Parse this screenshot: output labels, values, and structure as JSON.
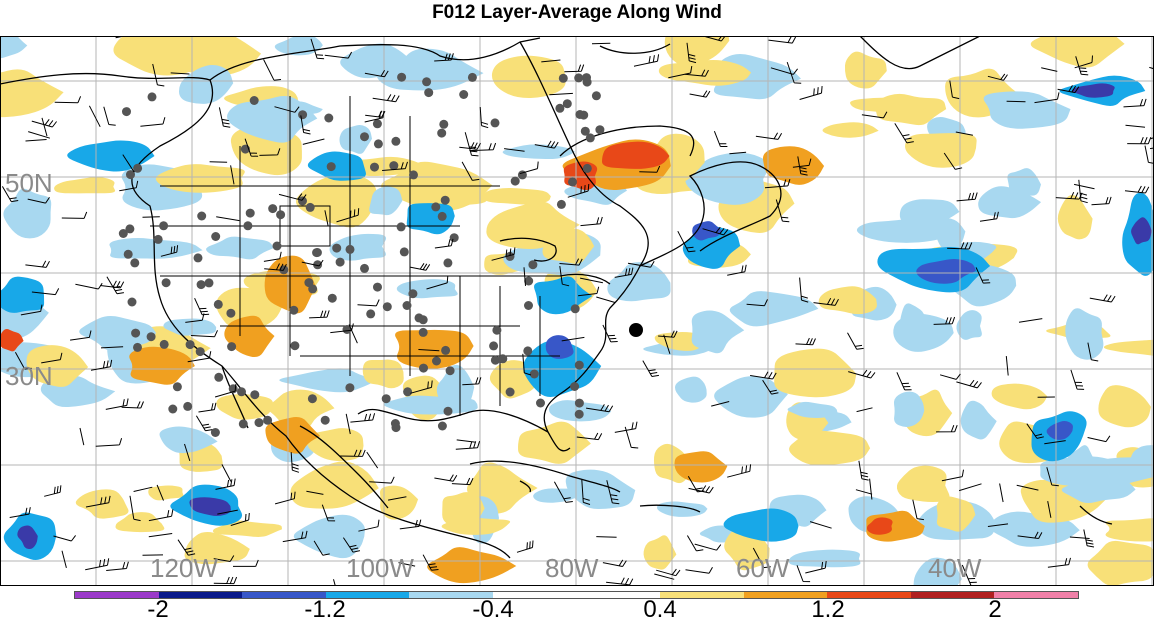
{
  "title": "F012 Layer-Average Along Wind",
  "map": {
    "lat_labels": [
      "50N",
      "30N"
    ],
    "lon_labels": [
      "120W",
      "100W",
      "80W",
      "60W",
      "40W"
    ]
  },
  "colorbar": {
    "colors": [
      "#9b3ac9",
      "#0a1a8a",
      "#3857c8",
      "#18a8e8",
      "#a8d8f0",
      "#ffffff",
      "#ffffff",
      "#f8e078",
      "#f0a020",
      "#e84818",
      "#b02020",
      "#f080a8"
    ],
    "tick_labels": [
      "-2",
      "-1.2",
      "-0.4",
      "0.4",
      "1.2",
      "2"
    ]
  }
}
